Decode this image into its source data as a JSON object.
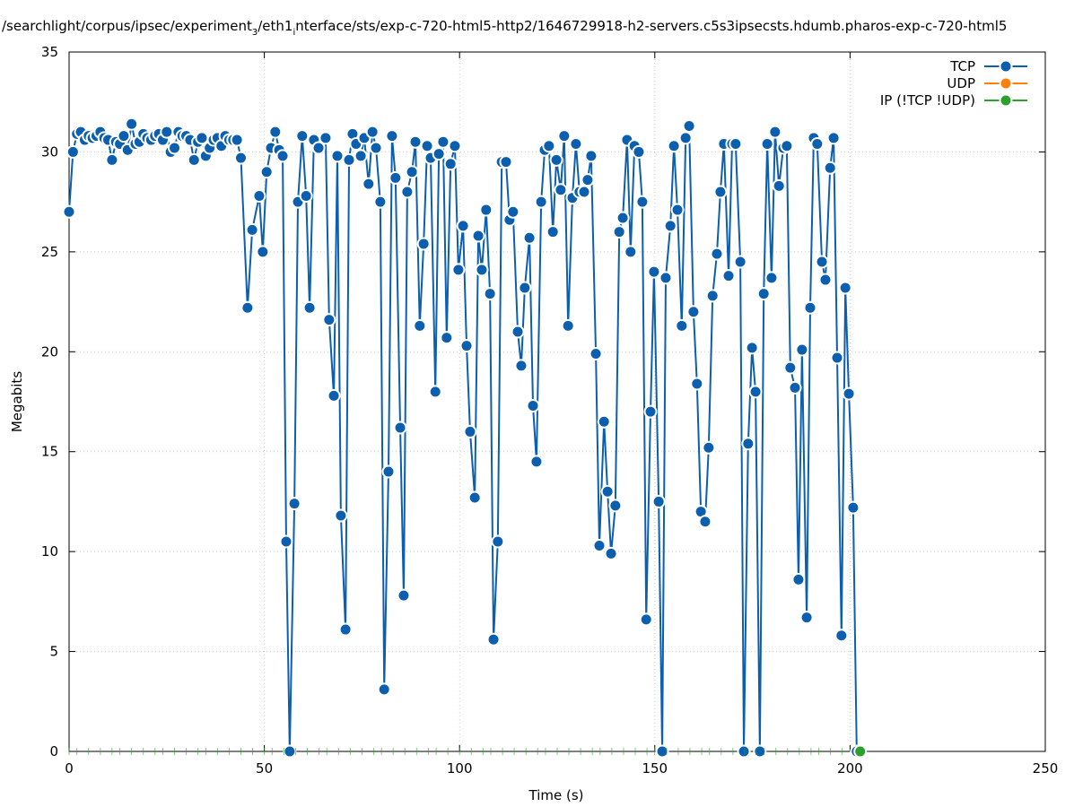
{
  "chart_data": {
    "type": "line",
    "title_parts": [
      {
        "text": "/searchlight/corpus/ipsec/experiment",
        "sub": false
      },
      {
        "text": "3",
        "sub": true
      },
      {
        "text": "/eth1",
        "sub": false
      },
      {
        "text": "i",
        "sub": true
      },
      {
        "text": "nterface/sts/exp-c-720-html5-http2/1646729918-h2-servers.c5s3ipsecsts.hdumb.pharos-exp-c-720-html5",
        "sub": false
      }
    ],
    "xlabel": "Time (s)",
    "ylabel": "Megabits",
    "xlim": [
      0,
      250
    ],
    "ylim": [
      0,
      35
    ],
    "xticks": [
      "0",
      "50",
      "100",
      "150",
      "200",
      "250"
    ],
    "yticks": [
      "0",
      "5",
      "10",
      "15",
      "20",
      "25",
      "30",
      "35"
    ],
    "grid": true,
    "legend_position": "top-right",
    "series": [
      {
        "name": "TCP",
        "color": "#0b5fae",
        "x": [
          0,
          1,
          2,
          3,
          4,
          5,
          6,
          7,
          8,
          9,
          10,
          11,
          12,
          13,
          14,
          15,
          16,
          17,
          18,
          19,
          20,
          21,
          22,
          23,
          24,
          25,
          26,
          27,
          28,
          29,
          30,
          31,
          32,
          33,
          34,
          35,
          36,
          37,
          38,
          39,
          40,
          41,
          42,
          43,
          44,
          45.7,
          46.9,
          48.7,
          49.6,
          50.6,
          51.7,
          52.8,
          53.8,
          54.7,
          55.6,
          56.5,
          57.7,
          58.6,
          59.7,
          60.7,
          61.6,
          62.7,
          63.9,
          65.7,
          66.6,
          67.8,
          68.7,
          69.6,
          70.8,
          71.7,
          72.6,
          73.5,
          74.7,
          75.6,
          76.7,
          77.7,
          78.6,
          79.7,
          80.7,
          81.8,
          82.7,
          83.6,
          84.8,
          85.7,
          86.6,
          87.8,
          88.7,
          89.8,
          90.8,
          91.7,
          92.6,
          93.8,
          94.7,
          95.8,
          96.7,
          97.7,
          98.8,
          99.7,
          100.9,
          101.8,
          102.7,
          103.9,
          104.8,
          105.7,
          106.8,
          107.8,
          108.7,
          109.8,
          110.8,
          111.9,
          112.8,
          113.7,
          114.9,
          115.8,
          116.7,
          117.9,
          118.8,
          119.7,
          120.9,
          121.8,
          122.9,
          123.9,
          124.8,
          125.9,
          126.8,
          127.8,
          128.9,
          129.8,
          130.7,
          131.9,
          132.8,
          133.7,
          134.9,
          135.8,
          137,
          137.9,
          138.8,
          139.9,
          140.9,
          141.8,
          142.9,
          143.8,
          144.8,
          145.9,
          146.8,
          147.8,
          148.9,
          149.8,
          151,
          151.9,
          152.8,
          154,
          154.9,
          155.8,
          156.9,
          157.9,
          158.8,
          159.9,
          160.8,
          161.8,
          162.9,
          163.8,
          164.8,
          165.9,
          166.8,
          167.7,
          168.9,
          169.8,
          170.7,
          171.9,
          172.8,
          173.9,
          174.9,
          175.8,
          176.9,
          177.9,
          178.8,
          179.9,
          180.8,
          181.8,
          182.9,
          183.8,
          184.7,
          185.9,
          186.8,
          187.7,
          188.9,
          189.8,
          190.7,
          191.6,
          192.8,
          193.7,
          194.9,
          195.8,
          196.7,
          197.8,
          198.8,
          199.7,
          200.8,
          201.7
        ],
        "y": [
          27.0,
          30.0,
          30.9,
          31.0,
          30.6,
          30.8,
          30.7,
          30.8,
          31.0,
          30.7,
          30.6,
          29.6,
          30.5,
          30.4,
          30.8,
          30.1,
          31.4,
          30.4,
          30.5,
          30.9,
          30.7,
          30.6,
          30.8,
          30.9,
          30.6,
          31.0,
          30.0,
          30.2,
          31.0,
          30.8,
          30.8,
          30.6,
          29.6,
          30.5,
          30.7,
          29.8,
          30.2,
          30.6,
          30.7,
          30.3,
          30.8,
          30.6,
          30.6,
          30.6,
          29.7,
          22.2,
          26.1,
          27.8,
          25.0,
          29.0,
          30.2,
          31.0,
          30.1,
          29.8,
          10.5,
          0.0,
          12.4,
          27.5,
          30.8,
          27.8,
          22.2,
          30.6,
          30.2,
          30.7,
          21.6,
          17.8,
          29.8,
          11.8,
          6.1,
          29.6,
          30.9,
          30.4,
          29.8,
          30.7,
          28.4,
          31.0,
          30.2,
          27.5,
          3.1,
          14.0,
          30.8,
          28.7,
          16.2,
          7.8,
          28.0,
          29.0,
          30.5,
          21.3,
          25.4,
          30.3,
          29.7,
          18.0,
          29.9,
          30.5,
          20.7,
          29.4,
          30.3,
          24.1,
          26.3,
          20.3,
          16.0,
          12.7,
          25.8,
          24.1,
          27.1,
          22.9,
          5.6,
          10.5,
          29.5,
          29.5,
          26.6,
          27.0,
          21.0,
          19.3,
          23.2,
          25.7,
          17.3,
          14.5,
          27.5,
          30.1,
          30.3,
          26.0,
          29.6,
          28.1,
          30.8,
          21.3,
          27.7,
          30.4,
          28.0,
          28.0,
          28.6,
          29.8,
          19.9,
          10.3,
          16.5,
          13.0,
          9.9,
          12.3,
          26.0,
          26.7,
          30.6,
          25.0,
          30.3,
          30.0,
          27.5,
          6.6,
          17.0,
          24.0,
          12.5,
          0.0,
          23.7,
          26.3,
          30.3,
          27.1,
          21.3,
          30.7,
          31.3,
          22.0,
          18.4,
          12.0,
          11.5,
          15.2,
          22.8,
          24.9,
          28.0,
          30.4,
          23.8,
          30.4,
          30.4,
          24.5,
          0.0,
          15.4,
          20.2,
          18.0,
          0.0,
          22.9,
          30.4,
          23.7,
          31.0,
          28.3,
          30.2,
          30.3,
          19.2,
          18.2,
          8.6,
          20.1,
          6.7,
          22.2,
          30.7,
          30.4,
          24.5,
          23.6,
          29.2,
          30.7,
          19.7,
          5.8,
          23.2,
          17.9,
          12.2,
          0.0
        ]
      },
      {
        "name": "UDP",
        "color": "#ff7f0e",
        "x": [],
        "y": []
      },
      {
        "name": "IP (!TCP  !UDP)",
        "color": "#2ca02c",
        "x": [
          0,
          2,
          5,
          8,
          11,
          13,
          16,
          19,
          22,
          24,
          27,
          30,
          33,
          35,
          38,
          41,
          44,
          47,
          50,
          52,
          55,
          58,
          61,
          64,
          66,
          69,
          72,
          75,
          78,
          80,
          83,
          86,
          89,
          92,
          94,
          97,
          100,
          103,
          106,
          108,
          111,
          114,
          117,
          120,
          122,
          125,
          128,
          131,
          134,
          136,
          139,
          142,
          145,
          148,
          150,
          153,
          156,
          159,
          162,
          164,
          167,
          170,
          173,
          176,
          178,
          181,
          184,
          187,
          190,
          192,
          195,
          198,
          202.6
        ],
        "y": [
          0,
          0,
          0,
          0,
          0,
          0,
          0,
          0,
          0,
          0,
          0,
          0,
          0,
          0,
          0,
          0,
          0,
          0,
          0,
          0,
          0,
          0,
          0,
          0,
          0,
          0,
          0,
          0,
          0,
          0,
          0,
          0,
          0,
          0,
          0,
          0,
          0,
          0,
          0,
          0,
          0,
          0,
          0,
          0,
          0,
          0,
          0,
          0,
          0,
          0,
          0,
          0,
          0,
          0,
          0,
          0,
          0,
          0,
          0,
          0,
          0,
          0,
          0,
          0,
          0,
          0,
          0,
          0,
          0,
          0,
          0,
          0,
          0
        ]
      }
    ]
  }
}
